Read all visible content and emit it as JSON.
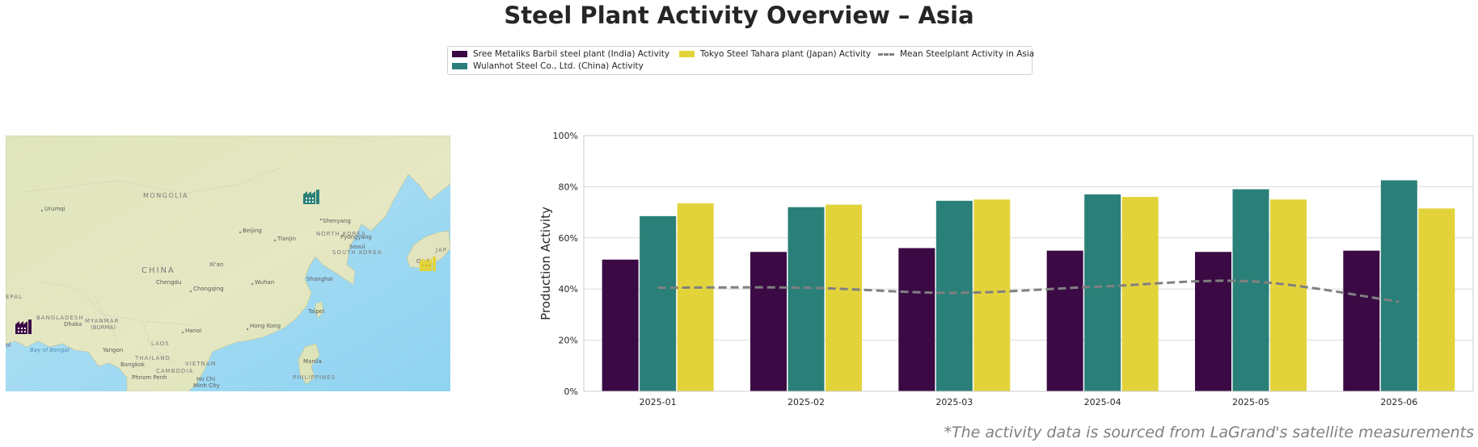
{
  "title": "Steel Plant Activity Overview – Asia",
  "footnote": "*The activity data is sourced from LaGrand's satellite measurements",
  "legend": {
    "items": [
      {
        "label": "Sree Metaliks Barbil steel plant (India) Activity",
        "color": "#3b0a45",
        "kind": "bar"
      },
      {
        "label": "Wulanhot Steel Co., Ltd. (China) Activity",
        "color": "#2a8078",
        "kind": "bar"
      },
      {
        "label": "Tokyo Steel Tahara plant (Japan) Activity",
        "color": "#e3d33b",
        "kind": "bar"
      },
      {
        "label": "Mean Steelplant Activity in Asia",
        "color": "#808080",
        "kind": "line"
      }
    ]
  },
  "map": {
    "labels": {
      "mongolia": "MONGOLIA",
      "china": "CHINA",
      "north_korea": "NORTH KOREA",
      "south_korea": "SOUTH KOREA",
      "bangladesh": "BANGLADESH",
      "myanmar": "MYANMAR",
      "burma": "(BURMA)",
      "laos": "LAOS",
      "thailand": "THAILAND",
      "vietnam": "VIETNAM",
      "cambodia": "CAMBODIA",
      "philippines": "PHILIPPINES",
      "nepal": "EPAL",
      "japan": "JAP",
      "bay_of_bengal": "Bay of Bengal",
      "urumqi": "Urumqi",
      "beijing": "Beijing",
      "tianjin": "Tianjin",
      "shenyang": "Shenyang",
      "pyongyang": "Pyongyang",
      "seoul": "Seoul",
      "xian": "Xi'an",
      "chengdu": "Chengdu",
      "chongqing": "Chongqing",
      "wuhan": "Wuhan",
      "shanghai": "Shanghai",
      "osaka": "Osak",
      "dhaka": "Dhaka",
      "taipei": "Taipei",
      "hanoi": "Hanoi",
      "hong_kong": "Hong Kong",
      "yangon": "Yangon",
      "bangkok": "Bangkok",
      "phnom_penh": "Phnom Penh",
      "ho_chi_minh": "Ho Chi",
      "minh_city": "Minh City",
      "manila": "Manila",
      "kolkata": "ol"
    },
    "markers": [
      {
        "plant": "Sree Metaliks Barbil",
        "color": "#3b0a45",
        "icon": "factory-icon"
      },
      {
        "plant": "Wulanhot Steel Co., Ltd.",
        "color": "#2a8078",
        "icon": "factory-icon"
      },
      {
        "plant": "Tokyo Steel Tahara plant",
        "color": "#e3d33b",
        "icon": "factory-icon"
      }
    ]
  },
  "chart_data": {
    "type": "bar",
    "title": "Steel Plant Activity Overview – Asia",
    "xlabel": "",
    "ylabel": "Production Activity",
    "ylim": [
      0,
      100
    ],
    "yticks": [
      0,
      20,
      40,
      60,
      80,
      100
    ],
    "ytick_labels": [
      "0%",
      "20%",
      "40%",
      "60%",
      "80%",
      "100%"
    ],
    "categories": [
      "2025-01",
      "2025-02",
      "2025-03",
      "2025-04",
      "2025-05",
      "2025-06"
    ],
    "grid": "horizontal",
    "legend_position": "top-center",
    "series": [
      {
        "name": "Sree Metaliks Barbil steel plant (India) Activity",
        "color": "#3b0a45",
        "values": [
          51.5,
          54.5,
          56,
          55,
          54.5,
          55
        ]
      },
      {
        "name": "Wulanhot Steel Co., Ltd. (China) Activity",
        "color": "#2a8078",
        "values": [
          68.5,
          72,
          74.5,
          77,
          79,
          82.5
        ]
      },
      {
        "name": "Tokyo Steel Tahara plant (Japan) Activity",
        "color": "#e3d33b",
        "values": [
          73.5,
          73,
          75,
          76,
          75,
          71.5
        ]
      }
    ],
    "line_series": {
      "name": "Mean Steelplant Activity in Asia",
      "color": "#808080",
      "style": "dashed",
      "values": [
        40.5,
        40.5,
        38.5,
        41,
        43,
        35
      ]
    }
  }
}
